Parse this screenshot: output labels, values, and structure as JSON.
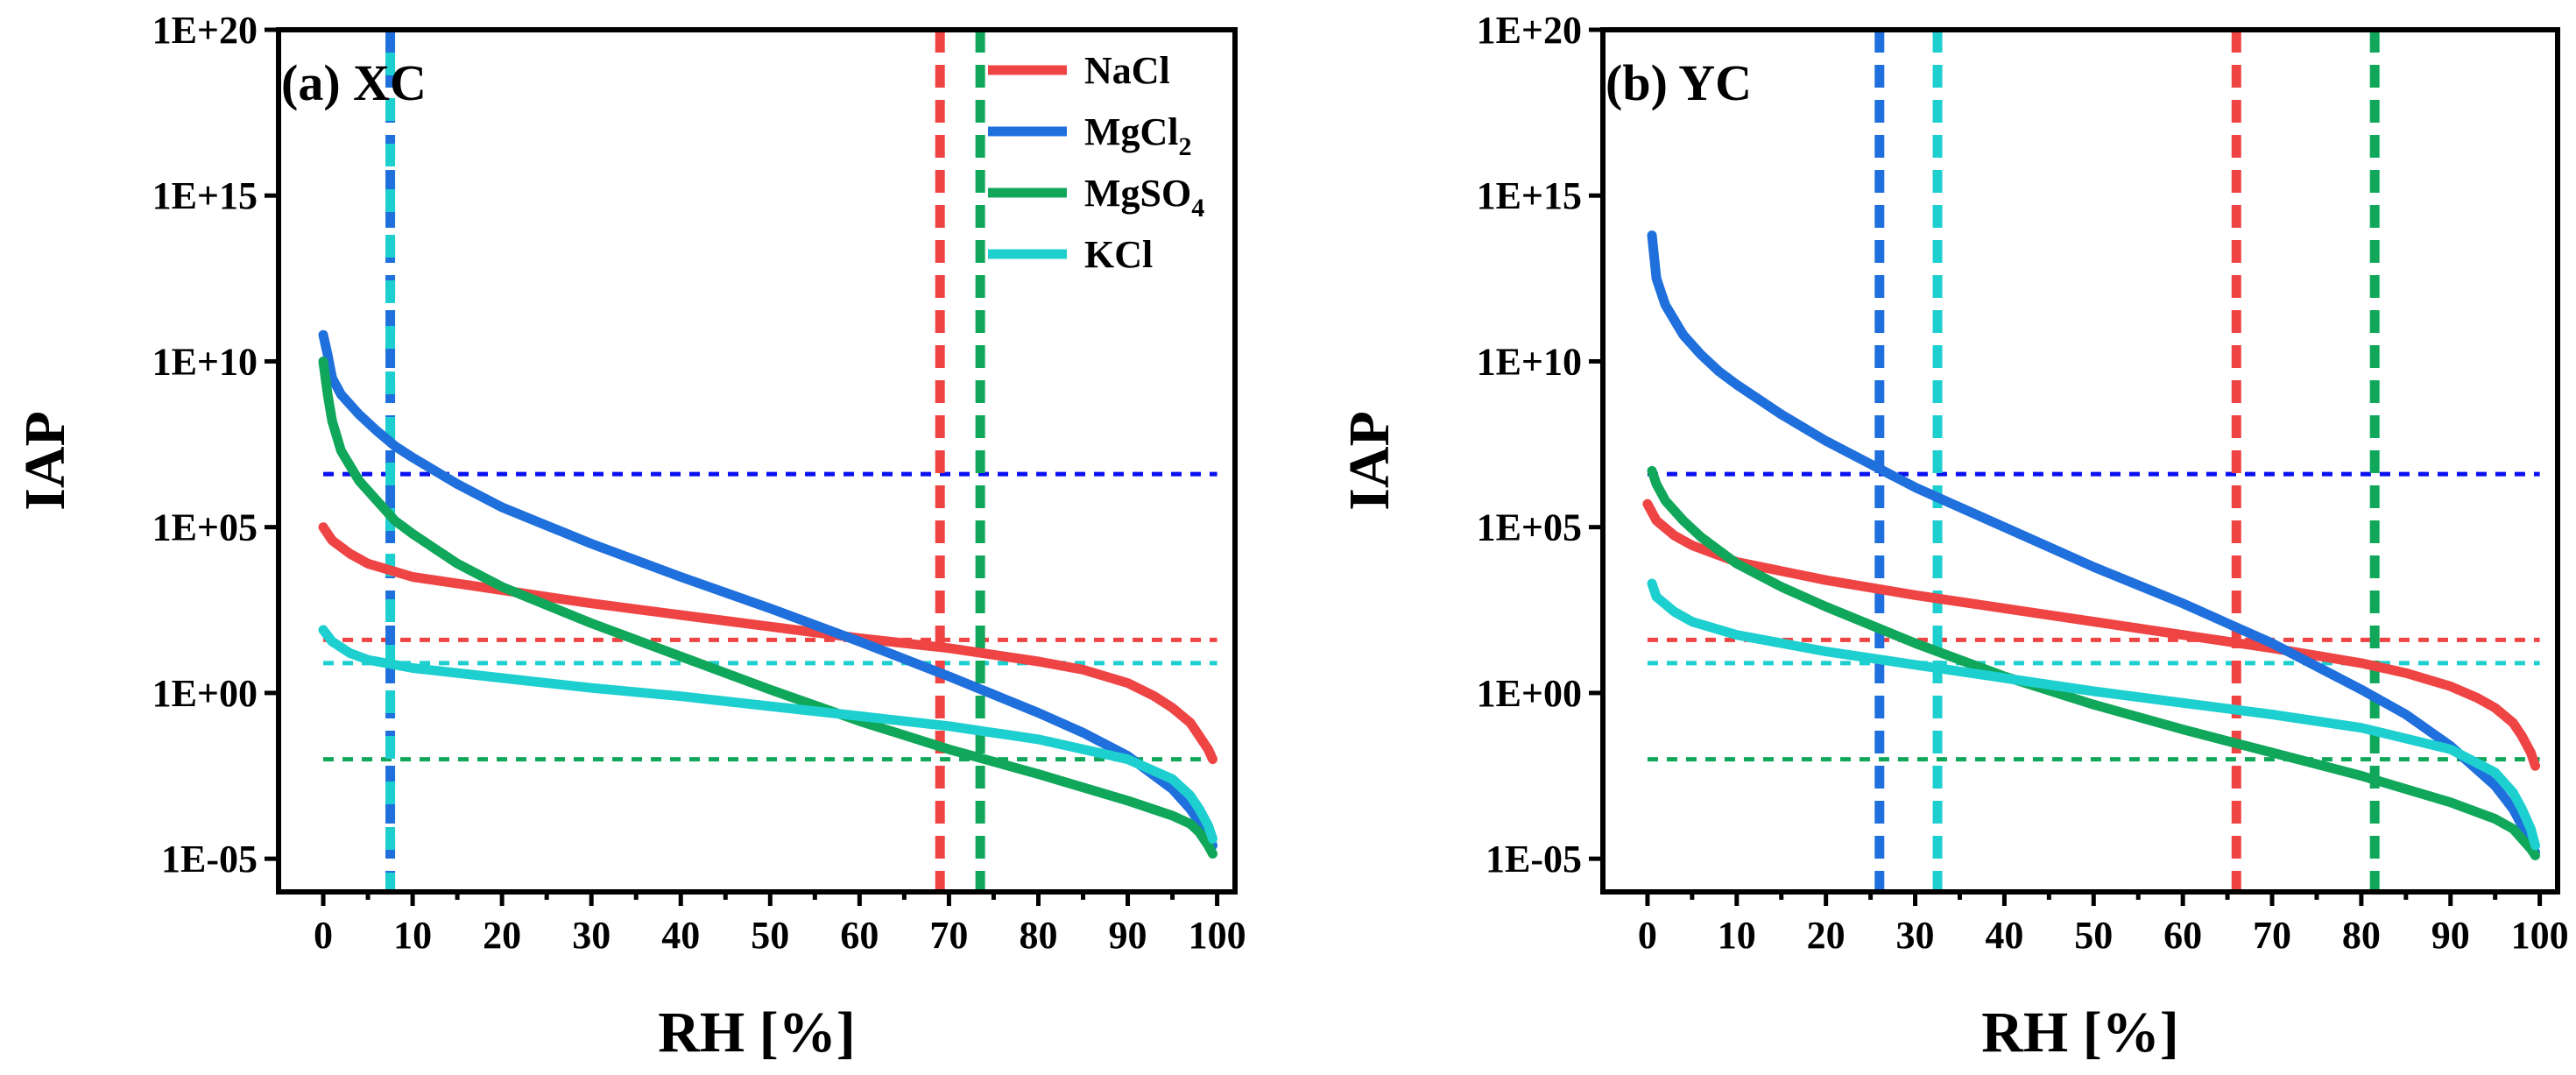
{
  "figure": {
    "colors": {
      "NaCl": "#ef4444",
      "MgCl2": "#1f6fdc",
      "MgSO4": "#10a75b",
      "KCl": "#1ecfcf",
      "ref_blue": "#0a10f0"
    },
    "legend": [
      {
        "key": "NaCl",
        "base": "NaCl",
        "sub": "",
        "color": "#ef4444"
      },
      {
        "key": "MgCl2",
        "base": "MgCl",
        "sub": "2",
        "color": "#1f6fdc"
      },
      {
        "key": "MgSO4",
        "base": "MgSO",
        "sub": "4",
        "color": "#10a75b"
      },
      {
        "key": "KCl",
        "base": "KCl",
        "sub": "",
        "color": "#1ecfcf"
      }
    ]
  },
  "chart_data": [
    {
      "id": "a",
      "type": "line",
      "title": "(a) XC",
      "xlabel": "RH [%]",
      "ylabel": "IAP",
      "xlim": [
        -5,
        102
      ],
      "ylim_log10": [
        -6,
        20
      ],
      "xticks": [
        0,
        10,
        20,
        30,
        40,
        50,
        60,
        70,
        80,
        90,
        100
      ],
      "yticks": [
        {
          "log": -5,
          "label": "1E-05"
        },
        {
          "log": 0,
          "label": "1E+00"
        },
        {
          "log": 5,
          "label": "1E+05"
        },
        {
          "log": 10,
          "label": "1E+10"
        },
        {
          "log": 15,
          "label": "1E+15"
        },
        {
          "log": 20,
          "label": "1E+20"
        }
      ],
      "series": [
        {
          "name": "NaCl",
          "color": "#ef4444",
          "x": [
            0,
            1,
            3,
            5,
            10,
            20,
            30,
            40,
            50,
            60,
            70,
            80,
            85,
            90,
            93,
            95,
            97,
            98,
            99,
            99.5
          ],
          "log_iap": [
            5.0,
            4.6,
            4.2,
            3.9,
            3.5,
            3.1,
            2.7,
            2.35,
            2.0,
            1.65,
            1.35,
            0.95,
            0.7,
            0.3,
            -0.1,
            -0.45,
            -0.9,
            -1.3,
            -1.7,
            -2.0
          ]
        },
        {
          "name": "MgCl2",
          "color": "#1f6fdc",
          "x": [
            0,
            0.5,
            1,
            2,
            4,
            6,
            8,
            10,
            15,
            20,
            30,
            40,
            50,
            60,
            70,
            80,
            85,
            90,
            95,
            97,
            98,
            99,
            99.5
          ],
          "log_iap": [
            10.8,
            10.2,
            9.5,
            9.0,
            8.4,
            7.9,
            7.45,
            7.1,
            6.3,
            5.6,
            4.5,
            3.5,
            2.55,
            1.55,
            0.5,
            -0.6,
            -1.2,
            -1.9,
            -2.9,
            -3.5,
            -3.9,
            -4.3,
            -4.6
          ]
        },
        {
          "name": "MgSO4",
          "color": "#10a75b",
          "x": [
            0,
            0.5,
            1,
            2,
            4,
            6,
            8,
            10,
            15,
            20,
            30,
            40,
            50,
            60,
            70,
            80,
            90,
            95,
            97,
            98,
            99,
            99.5
          ],
          "log_iap": [
            10.0,
            9.0,
            8.2,
            7.3,
            6.4,
            5.8,
            5.2,
            4.8,
            3.9,
            3.2,
            2.1,
            1.1,
            0.1,
            -0.85,
            -1.7,
            -2.45,
            -3.25,
            -3.7,
            -3.95,
            -4.2,
            -4.6,
            -4.85
          ]
        },
        {
          "name": "KCl",
          "color": "#1ecfcf",
          "x": [
            0,
            1,
            3,
            5,
            10,
            20,
            30,
            40,
            50,
            60,
            70,
            80,
            90,
            95,
            97,
            98,
            99,
            99.5
          ],
          "log_iap": [
            1.9,
            1.55,
            1.2,
            1.0,
            0.75,
            0.45,
            0.15,
            -0.1,
            -0.4,
            -0.7,
            -1.0,
            -1.4,
            -2.0,
            -2.6,
            -3.1,
            -3.5,
            -4.0,
            -4.4
          ]
        }
      ],
      "ref_hlines": [
        {
          "log_iap": 6.6,
          "color": "#0a10f0"
        },
        {
          "log_iap": 1.6,
          "color": "#ef4444"
        },
        {
          "log_iap": 0.9,
          "color": "#1ecfcf"
        },
        {
          "log_iap": -2.0,
          "color": "#10a75b"
        }
      ],
      "ref_vlines": [
        {
          "x": 7.5,
          "color": "#1f6fdc"
        },
        {
          "x": 7.5,
          "color": "#1ecfcf"
        },
        {
          "x": 69,
          "color": "#ef4444"
        },
        {
          "x": 73.5,
          "color": "#10a75b"
        }
      ]
    },
    {
      "id": "b",
      "type": "line",
      "title": "(b) YC",
      "xlabel": "RH [%]",
      "ylabel": "IAP",
      "xlim": [
        -5,
        102
      ],
      "ylim_log10": [
        -6,
        20
      ],
      "xticks": [
        0,
        10,
        20,
        30,
        40,
        50,
        60,
        70,
        80,
        90,
        100
      ],
      "yticks": [
        {
          "log": -5,
          "label": "1E-05"
        },
        {
          "log": 0,
          "label": "1E+00"
        },
        {
          "log": 5,
          "label": "1E+05"
        },
        {
          "log": 10,
          "label": "1E+10"
        },
        {
          "log": 15,
          "label": "1E+15"
        },
        {
          "log": 20,
          "label": "1E+20"
        }
      ],
      "series": [
        {
          "name": "NaCl",
          "color": "#ef4444",
          "x": [
            0,
            1,
            3,
            5,
            10,
            20,
            30,
            40,
            50,
            60,
            70,
            80,
            85,
            90,
            93,
            95,
            97,
            98,
            99,
            99.5
          ],
          "log_iap": [
            5.7,
            5.2,
            4.75,
            4.45,
            3.95,
            3.4,
            2.95,
            2.55,
            2.15,
            1.75,
            1.35,
            0.9,
            0.6,
            0.2,
            -0.15,
            -0.45,
            -0.9,
            -1.3,
            -1.8,
            -2.2
          ]
        },
        {
          "name": "MgCl2",
          "color": "#1f6fdc",
          "x": [
            0.5,
            1,
            2,
            4,
            6,
            8,
            10,
            15,
            20,
            25,
            30,
            40,
            50,
            60,
            70,
            80,
            85,
            90,
            95,
            97,
            98,
            99,
            99.5
          ],
          "log_iap": [
            13.8,
            12.5,
            11.7,
            10.8,
            10.2,
            9.7,
            9.3,
            8.4,
            7.6,
            6.9,
            6.2,
            5.0,
            3.8,
            2.7,
            1.5,
            0.1,
            -0.65,
            -1.6,
            -2.8,
            -3.5,
            -4.0,
            -4.5,
            -4.8
          ]
        },
        {
          "name": "MgSO4",
          "color": "#10a75b",
          "x": [
            0.5,
            1,
            2,
            4,
            6,
            8,
            10,
            15,
            20,
            30,
            40,
            50,
            60,
            70,
            80,
            90,
            95,
            97,
            98,
            99,
            99.5
          ],
          "log_iap": [
            6.7,
            6.3,
            5.8,
            5.2,
            4.7,
            4.3,
            3.9,
            3.2,
            2.6,
            1.5,
            0.5,
            -0.35,
            -1.1,
            -1.8,
            -2.5,
            -3.3,
            -3.8,
            -4.1,
            -4.4,
            -4.7,
            -4.9
          ]
        },
        {
          "name": "KCl",
          "color": "#1ecfcf",
          "x": [
            0.5,
            1,
            3,
            5,
            10,
            20,
            30,
            40,
            50,
            60,
            70,
            80,
            90,
            95,
            97,
            98,
            99,
            99.5
          ],
          "log_iap": [
            3.3,
            2.9,
            2.45,
            2.15,
            1.75,
            1.25,
            0.85,
            0.45,
            0.05,
            -0.3,
            -0.65,
            -1.05,
            -1.7,
            -2.4,
            -3.0,
            -3.5,
            -4.1,
            -4.6
          ]
        }
      ],
      "ref_hlines": [
        {
          "log_iap": 6.6,
          "color": "#0a10f0"
        },
        {
          "log_iap": 1.6,
          "color": "#ef4444"
        },
        {
          "log_iap": 0.9,
          "color": "#1ecfcf"
        },
        {
          "log_iap": -2.0,
          "color": "#10a75b"
        }
      ],
      "ref_vlines": [
        {
          "x": 26,
          "color": "#1f6fdc"
        },
        {
          "x": 32.5,
          "color": "#1ecfcf"
        },
        {
          "x": 66,
          "color": "#ef4444"
        },
        {
          "x": 81.5,
          "color": "#10a75b"
        }
      ]
    }
  ]
}
